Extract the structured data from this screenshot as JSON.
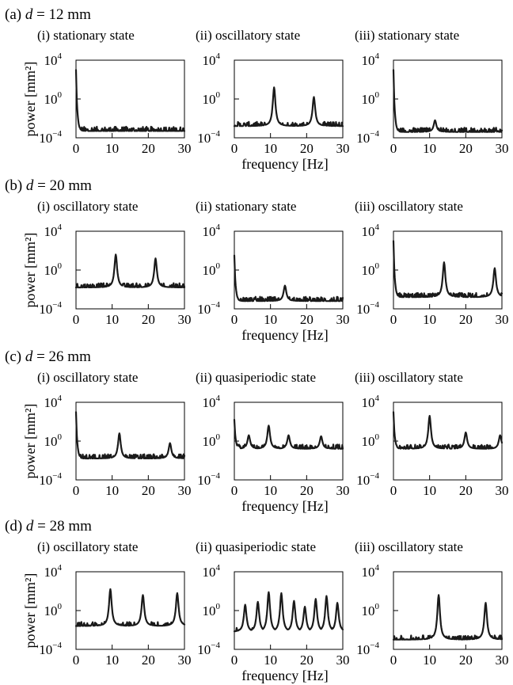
{
  "figure": {
    "rows": [
      {
        "label": "(a)",
        "param": "d",
        "eq": " = 12 mm"
      },
      {
        "label": "(b)",
        "param": "d",
        "eq": " = 20 mm"
      },
      {
        "label": "(c)",
        "param": "d",
        "eq": " = 26 mm"
      },
      {
        "label": "(d)",
        "param": "d",
        "eq": " = 28 mm"
      }
    ],
    "ylabel": "power [mm²]",
    "xlabel": "frequency [Hz]",
    "xticks": [
      "0",
      "10",
      "20",
      "30"
    ],
    "yticks": [
      {
        "base": "10",
        "exp": "4"
      },
      {
        "base": "10",
        "exp": "0"
      },
      {
        "base": "10",
        "exp": "−4"
      }
    ]
  },
  "chart_data": [
    {
      "type": "line",
      "panel": "a-i",
      "subtitle": "(i) stationary state",
      "xlim": [
        0,
        30
      ],
      "ylim": [
        -4,
        4
      ],
      "yscale": "log10",
      "peaks": [
        {
          "x": 0,
          "y": 3.0
        }
      ],
      "baseline": -3.3
    },
    {
      "type": "line",
      "panel": "a-ii",
      "subtitle": "(ii) oscillatory state",
      "xlim": [
        0,
        30
      ],
      "ylim": [
        -4,
        4
      ],
      "yscale": "log10",
      "peaks": [
        {
          "x": 11,
          "y": 1.2
        },
        {
          "x": 22,
          "y": 0.2
        }
      ],
      "baseline": -2.8
    },
    {
      "type": "line",
      "panel": "a-iii",
      "subtitle": "(iii) stationary state",
      "xlim": [
        0,
        30
      ],
      "ylim": [
        -4,
        4
      ],
      "yscale": "log10",
      "peaks": [
        {
          "x": 0,
          "y": 3.0
        },
        {
          "x": 11.5,
          "y": -2.2
        }
      ],
      "baseline": -3.4
    },
    {
      "type": "line",
      "panel": "b-i",
      "subtitle": "(i) oscillatory state",
      "xlim": [
        0,
        30
      ],
      "ylim": [
        -4,
        4
      ],
      "yscale": "log10",
      "peaks": [
        {
          "x": 11,
          "y": 1.6
        },
        {
          "x": 22,
          "y": 1.2
        }
      ],
      "baseline": -1.8
    },
    {
      "type": "line",
      "panel": "b-ii",
      "subtitle": "(ii) stationary state",
      "xlim": [
        0,
        30
      ],
      "ylim": [
        -4,
        4
      ],
      "yscale": "log10",
      "peaks": [
        {
          "x": 0,
          "y": 1.5
        },
        {
          "x": 14,
          "y": -1.6
        }
      ],
      "baseline": -3.2
    },
    {
      "type": "line",
      "panel": "b-iii",
      "subtitle": "(iii) oscillatory state",
      "xlim": [
        0,
        30
      ],
      "ylim": [
        -4,
        4
      ],
      "yscale": "log10",
      "peaks": [
        {
          "x": 0,
          "y": 3.0
        },
        {
          "x": 14,
          "y": 0.8
        },
        {
          "x": 28,
          "y": 0.2
        }
      ],
      "baseline": -2.8
    },
    {
      "type": "line",
      "panel": "c-i",
      "subtitle": "(i) oscillatory state",
      "xlim": [
        0,
        30
      ],
      "ylim": [
        -4,
        4
      ],
      "yscale": "log10",
      "peaks": [
        {
          "x": 0,
          "y": 3.0
        },
        {
          "x": 12,
          "y": 0.8
        },
        {
          "x": 26,
          "y": -0.2
        }
      ],
      "baseline": -1.8
    },
    {
      "type": "line",
      "panel": "c-ii",
      "subtitle": "(ii) quasiperiodic state",
      "xlim": [
        0,
        30
      ],
      "ylim": [
        -4,
        4
      ],
      "yscale": "log10",
      "peaks": [
        {
          "x": 0,
          "y": 2.2
        },
        {
          "x": 9.5,
          "y": 1.6
        },
        {
          "x": 4,
          "y": 0.6
        },
        {
          "x": 15,
          "y": 0.6
        },
        {
          "x": 24,
          "y": 0.5
        }
      ],
      "baseline": -0.8
    },
    {
      "type": "line",
      "panel": "c-iii",
      "subtitle": "(iii) oscillatory state",
      "xlim": [
        0,
        30
      ],
      "ylim": [
        -4,
        4
      ],
      "yscale": "log10",
      "peaks": [
        {
          "x": 0,
          "y": 3.0
        },
        {
          "x": 10,
          "y": 2.6
        },
        {
          "x": 20,
          "y": 0.9
        },
        {
          "x": 29.5,
          "y": 0.6
        }
      ],
      "baseline": -0.8
    },
    {
      "type": "line",
      "panel": "d-i",
      "subtitle": "(i) oscillatory state",
      "xlim": [
        0,
        30
      ],
      "ylim": [
        -4,
        4
      ],
      "yscale": "log10",
      "peaks": [
        {
          "x": 9.5,
          "y": 2.2
        },
        {
          "x": 18.5,
          "y": 1.6
        },
        {
          "x": 28,
          "y": 1.8
        }
      ],
      "baseline": -1.6
    },
    {
      "type": "line",
      "panel": "d-ii",
      "subtitle": "(ii) quasiperiodic state",
      "xlim": [
        0,
        30
      ],
      "ylim": [
        -4,
        4
      ],
      "yscale": "log10",
      "peaks": [
        {
          "x": 3,
          "y": 0.6
        },
        {
          "x": 6.5,
          "y": 0.9
        },
        {
          "x": 9.5,
          "y": 1.9
        },
        {
          "x": 13,
          "y": 1.8
        },
        {
          "x": 16.5,
          "y": 1.0
        },
        {
          "x": 19.5,
          "y": 0.4
        },
        {
          "x": 22.5,
          "y": 1.2
        },
        {
          "x": 25.5,
          "y": 1.5
        },
        {
          "x": 28.5,
          "y": 0.8
        }
      ],
      "baseline": -2.2
    },
    {
      "type": "line",
      "panel": "d-iii",
      "subtitle": "(iii) oscillatory state",
      "xlim": [
        0,
        30
      ],
      "ylim": [
        -4,
        4
      ],
      "yscale": "log10",
      "peaks": [
        {
          "x": 12.5,
          "y": 1.6
        },
        {
          "x": 25.5,
          "y": 0.8
        }
      ],
      "baseline": -3.0
    }
  ]
}
